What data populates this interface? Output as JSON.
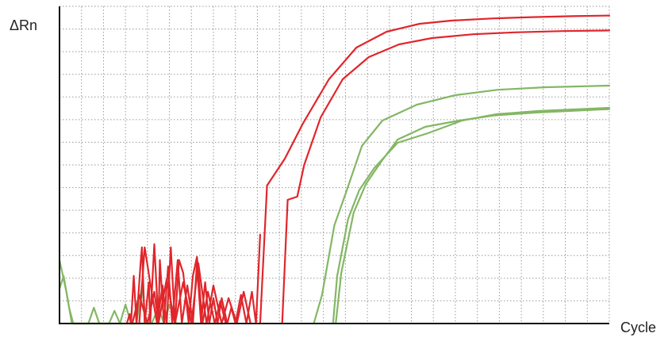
{
  "chart_data": {
    "type": "line",
    "title": "",
    "xlabel": "Cycle",
    "ylabel": "ΔRn",
    "xlim": [
      0,
      40
    ],
    "ylim": [
      0,
      1
    ],
    "grid": true,
    "legend": "none",
    "colors": {
      "red": "#e0262b",
      "green": "#84b765",
      "grid": "#9a9a9a",
      "axis": "#111111"
    },
    "series": [
      {
        "color": "red",
        "x": [
          14.6,
          15.1,
          16.4,
          17.7,
          19.6,
          21.6,
          23.8,
          26.2,
          28.5,
          31.6,
          34.4,
          37.3,
          40.0
        ],
        "y": [
          0.0,
          0.435,
          0.52,
          0.63,
          0.77,
          0.87,
          0.92,
          0.945,
          0.955,
          0.962,
          0.966,
          0.969,
          0.971
        ]
      },
      {
        "color": "red",
        "x": [
          16.2,
          16.6,
          17.3,
          17.8,
          19.0,
          20.6,
          22.5,
          24.7,
          27.1,
          30.1,
          33.1,
          36.6,
          40.0
        ],
        "y": [
          0.0,
          0.39,
          0.4,
          0.5,
          0.65,
          0.77,
          0.84,
          0.88,
          0.9,
          0.912,
          0.918,
          0.922,
          0.924
        ]
      },
      {
        "color": "green",
        "x": [
          18.5,
          19.1,
          20.0,
          20.9,
          22.0,
          23.5,
          26.0,
          28.8,
          31.9,
          35.4,
          40.0
        ],
        "y": [
          0.0,
          0.09,
          0.31,
          0.42,
          0.56,
          0.64,
          0.69,
          0.72,
          0.737,
          0.745,
          0.75
        ]
      },
      {
        "color": "green",
        "x": [
          20.1,
          20.5,
          21.4,
          22.3,
          23.4,
          24.6,
          26.6,
          29.1,
          31.6,
          34.6,
          40.0
        ],
        "y": [
          0.0,
          0.16,
          0.35,
          0.44,
          0.51,
          0.58,
          0.62,
          0.64,
          0.656,
          0.665,
          0.676
        ]
      },
      {
        "color": "green",
        "x": [
          19.9,
          20.2,
          21.0,
          21.8,
          22.9,
          24.6,
          26.8,
          29.3,
          31.8,
          34.8,
          40.0
        ],
        "y": [
          0.0,
          0.15,
          0.33,
          0.42,
          0.49,
          0.57,
          0.6,
          0.64,
          0.66,
          0.67,
          0.68
        ]
      },
      {
        "color": "red",
        "x": [
          4.9,
          5.1,
          5.2,
          5.4,
          5.6,
          5.9,
          6.0,
          6.2,
          6.5,
          6.6,
          6.9,
          7.2,
          7.3,
          7.6,
          7.9,
          8.2,
          8.6,
          8.9,
          9.3,
          9.7,
          10.0,
          10.3,
          10.6,
          10.9,
          11.2,
          11.5,
          11.8,
          12.2,
          12.5,
          12.8,
          13.2,
          13.6,
          14.0,
          14.3,
          14.6
        ],
        "y": [
          0.0,
          0.03,
          0.0,
          0.15,
          0.0,
          0.19,
          0.24,
          0.0,
          0.13,
          0.0,
          0.25,
          0.0,
          0.2,
          0.0,
          0.18,
          0.0,
          0.2,
          0.0,
          0.12,
          0.0,
          0.19,
          0.0,
          0.13,
          0.0,
          0.08,
          0.0,
          0.08,
          0.0,
          0.05,
          0.0,
          0.09,
          0.0,
          0.1,
          0.0,
          0.28
        ]
      },
      {
        "color": "red",
        "x": [
          5.8,
          6.2,
          6.7,
          7.1,
          7.5,
          7.8,
          8.1,
          8.4,
          8.7,
          9.0,
          9.4,
          9.7,
          10.0,
          10.4,
          10.8,
          11.3,
          11.7,
          12.1
        ],
        "y": [
          0.0,
          0.24,
          0.1,
          0.0,
          0.12,
          0.0,
          0.24,
          0.0,
          0.2,
          0.16,
          0.0,
          0.15,
          0.21,
          0.0,
          0.1,
          0.0,
          0.07,
          0.0
        ]
      },
      {
        "color": "red",
        "x": [
          5.3,
          5.8,
          6.4,
          6.9,
          7.2,
          7.8,
          8.4,
          9.0,
          9.6,
          10.1,
          10.7,
          11.2,
          11.8,
          12.3,
          12.9,
          13.4,
          13.9
        ],
        "y": [
          0.0,
          0.09,
          0.0,
          0.1,
          0.0,
          0.14,
          0.0,
          0.13,
          0.0,
          0.19,
          0.0,
          0.12,
          0.0,
          0.08,
          0.0,
          0.1,
          0.0
        ]
      },
      {
        "color": "green",
        "x": [
          0.0,
          0.5,
          0.9,
          1.2,
          1.6,
          2.0,
          2.4,
          2.8,
          3.3,
          3.7,
          4.1,
          4.4,
          4.8,
          5.2,
          5.6,
          6.0,
          6.4,
          6.9,
          7.4,
          7.9,
          8.4,
          8.9,
          9.4,
          9.9,
          10.4,
          10.9,
          11.4,
          12.0
        ],
        "y": [
          0.2,
          0.1,
          0.0,
          0.0,
          0.0,
          0.0,
          0.0,
          0.0,
          0.0,
          0.0,
          0.0,
          0.0,
          0.0,
          0.0,
          0.0,
          0.0,
          0.0,
          0.0,
          0.0,
          0.0,
          0.0,
          0.0,
          0.0,
          0.0,
          0.0,
          0.0,
          0.0,
          0.0
        ]
      },
      {
        "color": "green",
        "x": [
          0.0,
          0.3,
          0.7,
          1.0,
          1.4,
          1.8,
          2.1,
          2.5,
          2.9,
          3.3,
          3.6,
          4.0,
          4.4,
          4.8,
          5.2,
          5.6,
          6.0,
          6.3,
          6.7,
          7.2,
          7.6,
          8.0,
          8.5,
          8.9,
          9.3
        ],
        "y": [
          0.11,
          0.15,
          0.05,
          0.0,
          0.0,
          0.0,
          0.0,
          0.05,
          0.0,
          0.0,
          0.0,
          0.04,
          0.0,
          0.06,
          0.0,
          0.0,
          0.12,
          0.0,
          0.0,
          0.05,
          0.0,
          0.06,
          0.0,
          0.0,
          0.0
        ]
      }
    ]
  }
}
